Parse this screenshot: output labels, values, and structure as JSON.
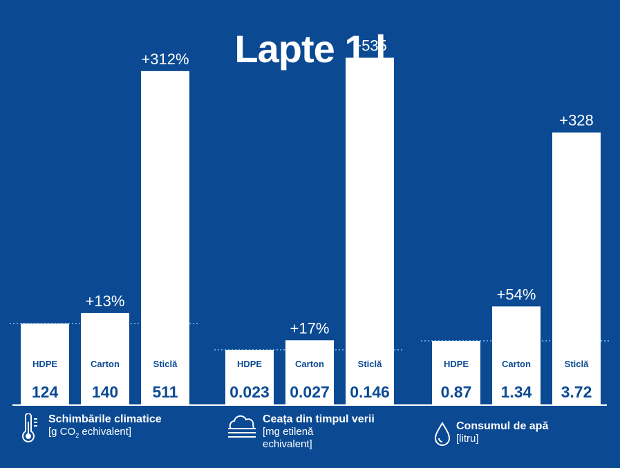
{
  "title": "Lapte 1 l",
  "chart_data": {
    "type": "bar",
    "title": "Lapte 1 l",
    "panels": [
      {
        "name": "Schimbările climatice",
        "unit_parts": [
          "[g CO",
          "2",
          " echivalent]"
        ],
        "icon": "thermometer-icon",
        "categories": [
          "HDPE",
          "Carton",
          "Sticlă"
        ],
        "values": [
          124,
          140,
          511
        ],
        "value_labels": [
          "124",
          "140",
          "511"
        ],
        "pct_labels": [
          "",
          "+13%",
          "+312%"
        ]
      },
      {
        "name": "Ceața din timpul verii",
        "unit_lines": [
          "[mg etilenă",
          "echivalent]"
        ],
        "icon": "fog-cloud-icon",
        "categories": [
          "HDPE",
          "Carton",
          "Sticlă"
        ],
        "values": [
          0.023,
          0.027,
          0.146
        ],
        "value_labels": [
          "0.023",
          "0.027",
          "0.146"
        ],
        "pct_labels": [
          "",
          "+17%",
          "+535"
        ]
      },
      {
        "name": "Consumul de apă",
        "unit": "[litru]",
        "icon": "water-drop-icon",
        "categories": [
          "HDPE",
          "Carton",
          "Sticlă"
        ],
        "values": [
          0.87,
          1.34,
          3.72
        ],
        "value_labels": [
          "0.87",
          "1.34",
          "3.72"
        ],
        "pct_labels": [
          "",
          "+54%",
          "+328"
        ]
      }
    ],
    "baseline": "HDPE (dotted reference line)"
  },
  "colors": {
    "background": "#0b4a93",
    "bar": "#ffffff",
    "bar_text": "#0b4a93",
    "reference_line": "#5fa8e8"
  }
}
